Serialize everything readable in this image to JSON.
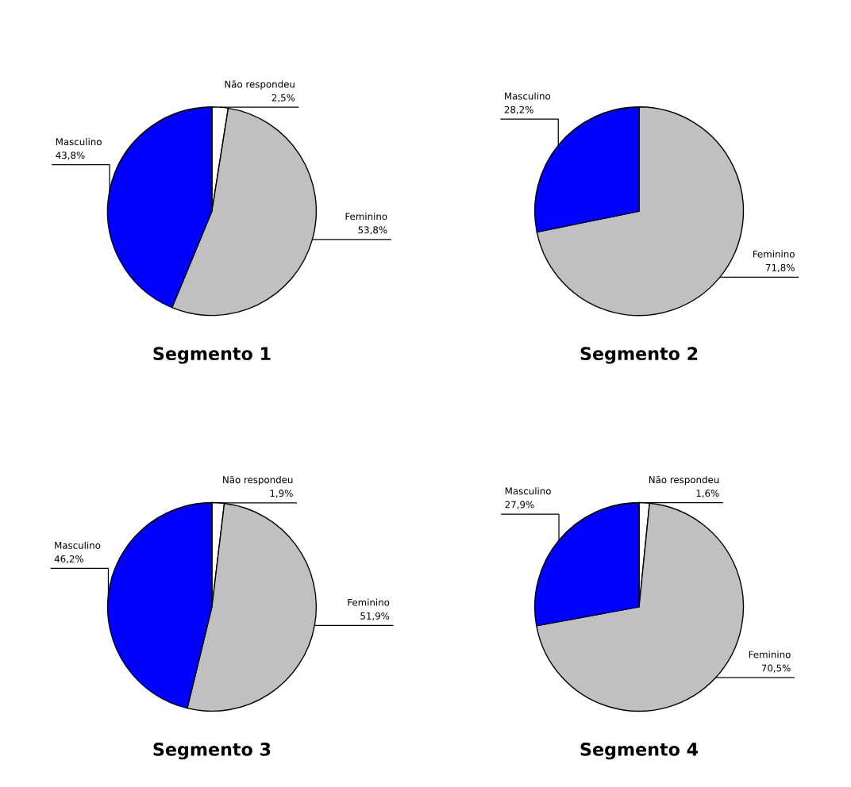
{
  "chart_data": [
    {
      "type": "pie",
      "title": "Segmento 1",
      "categories": [
        "Não respondeu",
        "Feminino",
        "Masculino"
      ],
      "values": [
        2.5,
        53.8,
        43.8
      ],
      "colors": [
        "#ffffff",
        "#c0c0c0",
        "#0000ff"
      ],
      "value_labels": [
        "2,5%",
        "53,8%",
        "43,8%"
      ]
    },
    {
      "type": "pie",
      "title": "Segmento 2",
      "categories": [
        "Feminino",
        "Masculino"
      ],
      "values": [
        71.8,
        28.2
      ],
      "colors": [
        "#c0c0c0",
        "#0000ff"
      ],
      "value_labels": [
        "71,8%",
        "28,2%"
      ]
    },
    {
      "type": "pie",
      "title": "Segmento 3",
      "categories": [
        "Não respondeu",
        "Feminino",
        "Masculino"
      ],
      "values": [
        1.9,
        51.9,
        46.2
      ],
      "colors": [
        "#ffffff",
        "#c0c0c0",
        "#0000ff"
      ],
      "value_labels": [
        "1,9%",
        "51,9%",
        "46,2%"
      ]
    },
    {
      "type": "pie",
      "title": "Segmento 4",
      "categories": [
        "Não respondeu",
        "Feminino",
        "Masculino"
      ],
      "values": [
        1.6,
        70.5,
        27.9
      ],
      "colors": [
        "#ffffff",
        "#c0c0c0",
        "#0000ff"
      ],
      "value_labels": [
        "1,6%",
        "70,5%",
        "27,9%"
      ]
    }
  ]
}
